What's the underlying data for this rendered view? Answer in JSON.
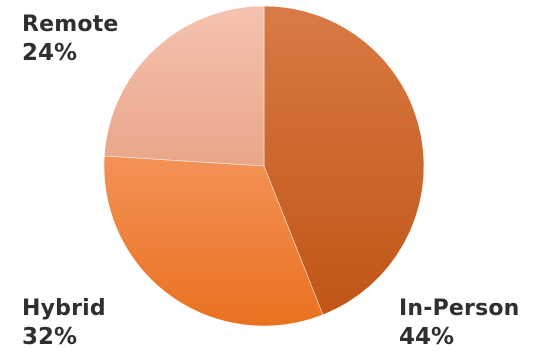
{
  "chart_data": {
    "type": "pie",
    "title": "",
    "slices": [
      {
        "label": "In-Person",
        "value": 44,
        "value_label": "44%",
        "color_light": "#d97a45",
        "color_dark": "#c05516"
      },
      {
        "label": "Hybrid",
        "value": 32,
        "value_label": "32%",
        "color_light": "#f49257",
        "color_dark": "#e9711f"
      },
      {
        "label": "Remote",
        "value": 24,
        "value_label": "24%",
        "color_light": "#f5c3b0",
        "color_dark": "#e9a588"
      }
    ],
    "start_angle": "12 o'clock",
    "direction": "clockwise",
    "legend": "none"
  }
}
